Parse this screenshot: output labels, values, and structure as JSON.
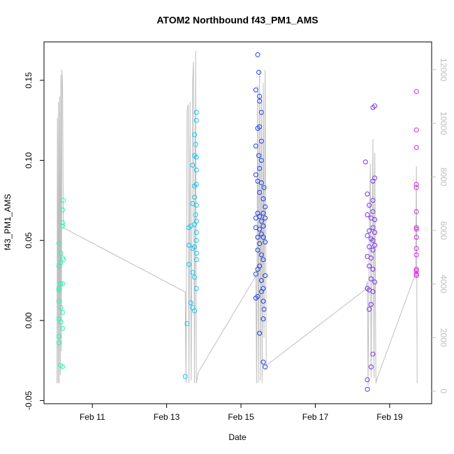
{
  "chart_data": {
    "type": "scatter",
    "title": "ATOM2 Northbound f43_PM1_AMS",
    "x_label": "Date",
    "y_label": "f43_PM1_AMS",
    "xlim": [
      9.7,
      20.13
    ],
    "ylim": [
      -0.052,
      0.174
    ],
    "y2lim": [
      -470,
      13040
    ],
    "xticks": [
      {
        "value": 11,
        "label": "Feb 11"
      },
      {
        "value": 13,
        "label": "Feb 13"
      },
      {
        "value": 15,
        "label": "Feb 15"
      },
      {
        "value": 17,
        "label": "Feb 17"
      },
      {
        "value": 19,
        "label": "Feb 19"
      }
    ],
    "yticks": [
      -0.05,
      {
        "value": 0,
        "label": "0.00"
      },
      0.05,
      {
        "value": 0.1,
        "label": "0.10"
      },
      0.15
    ],
    "y2ticks": [
      0,
      2000,
      4000,
      6000,
      8000,
      10000,
      12000
    ],
    "series": [
      {
        "color": "#2ef2b0",
        "x": [
          10.1,
          10.1,
          10.1,
          10.1,
          10.1,
          10.1,
          10.1,
          10.1,
          10.15,
          10.15,
          10.15,
          10.15,
          10.15,
          10.15,
          10.2,
          10.2,
          10.2,
          10.2,
          10.2,
          10.2,
          10.2,
          10.2,
          10.22,
          10.22
        ],
        "values": [
          0.048,
          0.034,
          0.02,
          0.019,
          0.012,
          0.001,
          -0.01,
          -0.014,
          0.042,
          0.036,
          0.023,
          0.008,
          -0.001,
          -0.028,
          0.069,
          0.061,
          0.059,
          0.039,
          0.023,
          0.005,
          -0.005,
          -0.029,
          0.075,
          0.038
        ]
      },
      {
        "color": "#19c3f0",
        "x": [
          13.5,
          13.55,
          13.6,
          13.6,
          13.6,
          13.65,
          13.65,
          13.7,
          13.7,
          13.7,
          13.7,
          13.7,
          13.75,
          13.75,
          13.75,
          13.75,
          13.75,
          13.75,
          13.75,
          13.75,
          13.8,
          13.8,
          13.8,
          13.8,
          13.8,
          13.8,
          13.8,
          13.8,
          13.8,
          13.8,
          13.8,
          13.8,
          13.78,
          13.78
        ],
        "values": [
          -0.035,
          -0.002,
          0.058,
          0.047,
          0.035,
          0.011,
          0.059,
          0.097,
          0.073,
          0.045,
          0.03,
          0.008,
          0.116,
          0.103,
          0.084,
          0.077,
          0.06,
          0.046,
          0.027,
          0.006,
          0.13,
          0.125,
          0.102,
          0.094,
          0.085,
          0.072,
          0.062,
          0.055,
          0.05,
          0.042,
          0.038,
          0.02,
          0.11,
          0.066
        ]
      },
      {
        "color": "#1a3df0",
        "x": [
          15.4,
          15.4,
          15.4,
          15.4,
          15.4,
          15.4,
          15.4,
          15.45,
          15.45,
          15.45,
          15.45,
          15.45,
          15.45,
          15.45,
          15.45,
          15.48,
          15.48,
          15.5,
          15.5,
          15.5,
          15.5,
          15.5,
          15.5,
          15.5,
          15.5,
          15.5,
          15.5,
          15.55,
          15.55,
          15.55,
          15.55,
          15.55,
          15.55,
          15.55,
          15.55,
          15.55,
          15.6,
          15.6,
          15.6,
          15.6,
          15.6,
          15.6,
          15.6,
          15.6,
          15.6,
          15.65,
          15.65,
          15.65,
          15.65,
          15.65,
          15.62,
          15.62
        ],
        "values": [
          0.144,
          0.109,
          0.091,
          0.064,
          0.058,
          0.029,
          0.014,
          0.166,
          0.12,
          0.087,
          0.067,
          0.052,
          0.044,
          0.032,
          0.015,
          0.155,
          0.103,
          0.14,
          0.137,
          0.121,
          0.095,
          0.08,
          0.065,
          0.057,
          0.048,
          0.034,
          -0.008,
          0.13,
          0.112,
          0.1,
          0.086,
          0.062,
          0.054,
          0.041,
          0.025,
          0.018,
          0.076,
          0.067,
          0.059,
          0.052,
          0.038,
          0.02,
          0.012,
          0.001,
          -0.026,
          0.071,
          0.064,
          0.049,
          0.028,
          -0.029,
          0.083,
          0.007
        ]
      },
      {
        "color": "#7a30e8",
        "x": [
          18.35,
          18.4,
          18.4,
          18.4,
          18.4,
          18.4,
          18.4,
          18.4,
          18.45,
          18.45,
          18.45,
          18.45,
          18.45,
          18.45,
          18.5,
          18.5,
          18.5,
          18.5,
          18.5,
          18.5,
          18.55,
          18.55,
          18.55,
          18.55,
          18.55,
          18.55,
          18.55,
          18.55,
          18.55,
          18.55,
          18.6,
          18.6,
          18.6,
          18.6,
          18.6,
          18.6
        ],
        "values": [
          0.099,
          0.079,
          0.066,
          0.053,
          0.04,
          0.02,
          -0.037,
          -0.043,
          0.072,
          0.056,
          0.046,
          0.034,
          0.019,
          0.007,
          0.064,
          0.051,
          0.039,
          0.026,
          0.01,
          -0.029,
          0.133,
          0.087,
          0.075,
          0.068,
          0.058,
          0.05,
          0.044,
          0.032,
          0.018,
          -0.021,
          0.134,
          0.089,
          0.063,
          0.055,
          0.047,
          0.024
        ]
      },
      {
        "color": "#e020e8",
        "x": [
          19.72,
          19.72,
          19.72,
          19.72,
          19.72,
          19.72,
          19.72,
          19.72,
          19.72,
          19.72,
          19.72,
          19.72,
          19.72,
          19.72,
          19.72
        ],
        "values": [
          0.143,
          0.119,
          0.108,
          0.085,
          0.083,
          0.068,
          0.058,
          0.057,
          0.052,
          0.045,
          0.041,
          0.032,
          0.031,
          0.029,
          0.028
        ]
      },
      {
        "type": "line",
        "axis": "y2",
        "color": "#bebebe",
        "x": [
          10.05,
          10.06,
          10.08,
          10.09,
          10.11,
          10.12,
          10.14,
          10.15,
          10.17,
          10.18,
          10.2,
          10.22,
          13.5,
          13.52,
          13.55,
          13.58,
          13.6,
          13.63,
          13.66,
          13.7,
          13.72,
          13.75,
          13.78,
          13.8,
          13.85,
          15.4,
          15.42,
          15.45,
          15.47,
          15.5,
          15.52,
          15.55,
          15.57,
          15.6,
          15.62,
          15.65,
          15.68,
          15.72,
          18.35,
          18.4,
          18.42,
          18.45,
          18.48,
          18.5,
          18.55,
          18.58,
          18.6,
          18.63,
          18.66,
          19.7,
          19.72,
          19.74
        ],
        "values": [
          300,
          10200,
          300,
          10800,
          300,
          11000,
          600,
          11800,
          1500,
          12000,
          11400,
          6100,
          3700,
          300,
          10500,
          10700,
          300,
          10800,
          400,
          11500,
          12300,
          300,
          12700,
          300,
          700,
          4300,
          300,
          11400,
          300,
          12000,
          400,
          11000,
          300,
          11500,
          2000,
          12000,
          1000,
          1000,
          3800,
          4100,
          200,
          5500,
          8500,
          500,
          9400,
          500,
          8900,
          300,
          470,
          4400,
          8400,
          300
        ]
      }
    ]
  }
}
